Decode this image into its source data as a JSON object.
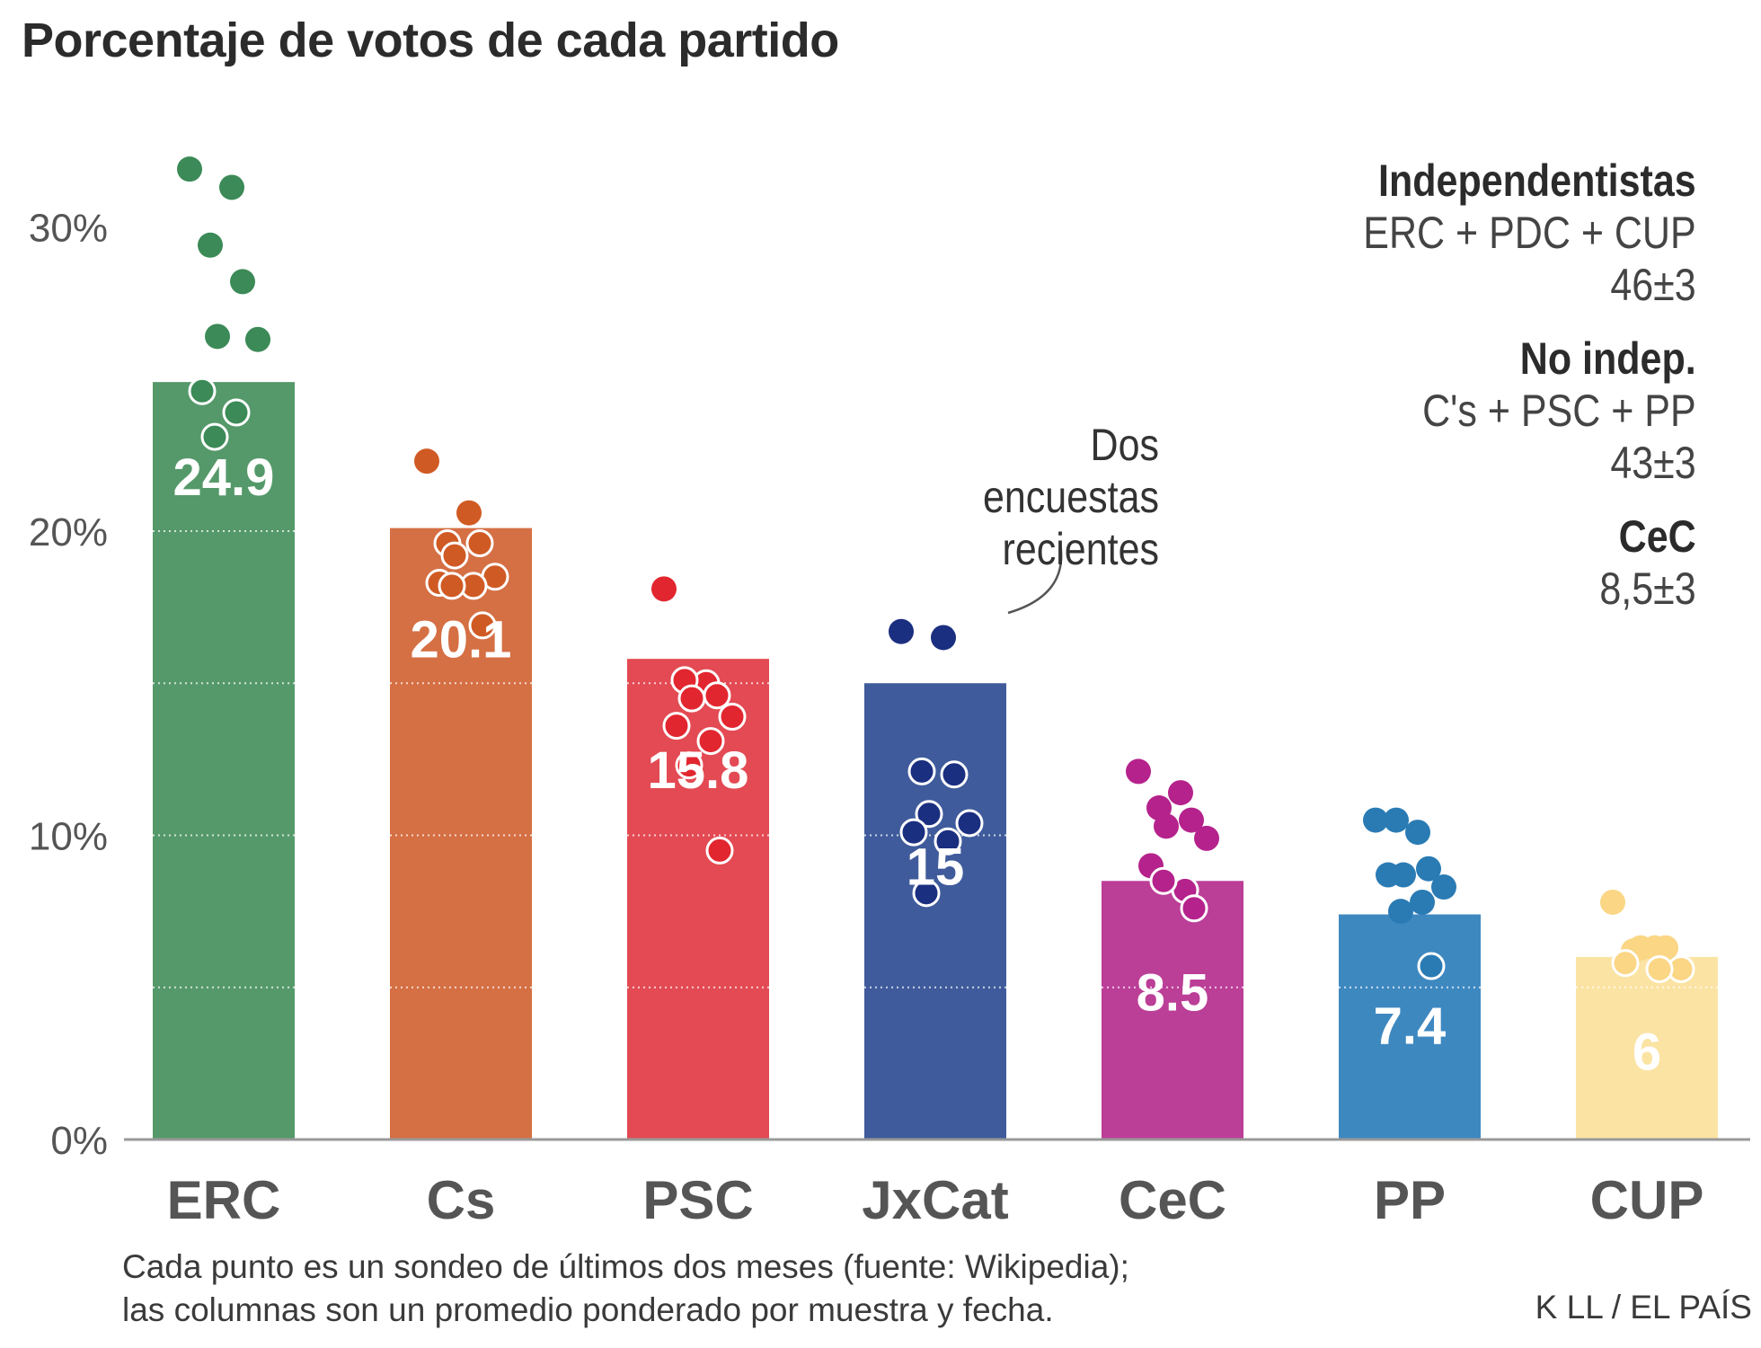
{
  "title": "Porcentaje de votos de cada partido",
  "chart_data": {
    "type": "bar",
    "title": "Porcentaje de votos de cada partido",
    "ylim": [
      0,
      32
    ],
    "yticks": [
      0,
      10,
      20,
      30
    ],
    "ytick_labels": [
      "0%",
      "10%",
      "20%",
      "30%"
    ],
    "categories": [
      "ERC",
      "Cs",
      "PSC",
      "JxCat",
      "CeC",
      "PP",
      "CUP"
    ],
    "values": [
      24.9,
      20.1,
      15.8,
      15,
      8.5,
      7.4,
      6
    ],
    "value_labels": [
      "24.9",
      "20.1",
      "15.8",
      "15",
      "8.5",
      "7.4",
      "6"
    ],
    "colors": [
      "#55996a",
      "#d56f44",
      "#e34a53",
      "#3f5b9b",
      "#bb3e97",
      "#3e88c0",
      "#fbe3a3"
    ],
    "dot_colors": [
      "#3b8a57",
      "#d05a24",
      "#e2262f",
      "#1b2f80",
      "#b5228c",
      "#2a7bb4",
      "#fad685"
    ],
    "polls": [
      [
        31.9,
        31.3,
        29.4,
        28.2,
        26.4,
        26.3,
        24.6,
        23.9,
        23.1
      ],
      [
        22.3,
        20.6,
        19.6,
        19.6,
        19.2,
        18.5,
        18.3,
        18.2,
        18.2,
        16.9
      ],
      [
        18.1,
        15.0,
        15.1,
        14.6,
        14.5,
        13.9,
        13.6,
        13.1,
        12.3,
        9.5
      ],
      [
        16.7,
        16.5,
        12.1,
        12.0,
        10.7,
        10.4,
        10.1,
        9.8,
        8.1
      ],
      [
        12.1,
        11.4,
        10.9,
        10.5,
        10.3,
        9.9,
        9.0,
        8.2,
        8.5,
        7.6
      ],
      [
        10.5,
        10.1,
        10.5,
        8.9,
        8.7,
        8.3,
        8.7,
        7.8,
        7.5,
        5.7
      ],
      [
        7.8,
        6.3,
        6.2,
        6.3,
        6.3,
        5.6,
        5.8,
        5.6
      ]
    ],
    "annotation": [
      "Dos encuestas",
      "recientes"
    ],
    "note": "Cada punto es un sondeo de últimos dos meses (fuente: Wikipedia); las columnas son un promedio ponderado por muestra y fecha."
  },
  "blocs": [
    {
      "name": "Independentistas",
      "lines": [
        "ERC + PDC + CUP",
        "46±3"
      ]
    },
    {
      "name": "No indep.",
      "lines": [
        "C's + PSC + PP",
        "43±3"
      ]
    },
    {
      "name": "CeC",
      "lines": [
        "8,5±3"
      ]
    }
  ],
  "note_line1": "Cada punto es un sondeo de últimos dos meses (fuente: Wikipedia);",
  "note_line2": "las columnas son un promedio ponderado por muestra y fecha.",
  "credit": "K LL / EL PAÍS"
}
